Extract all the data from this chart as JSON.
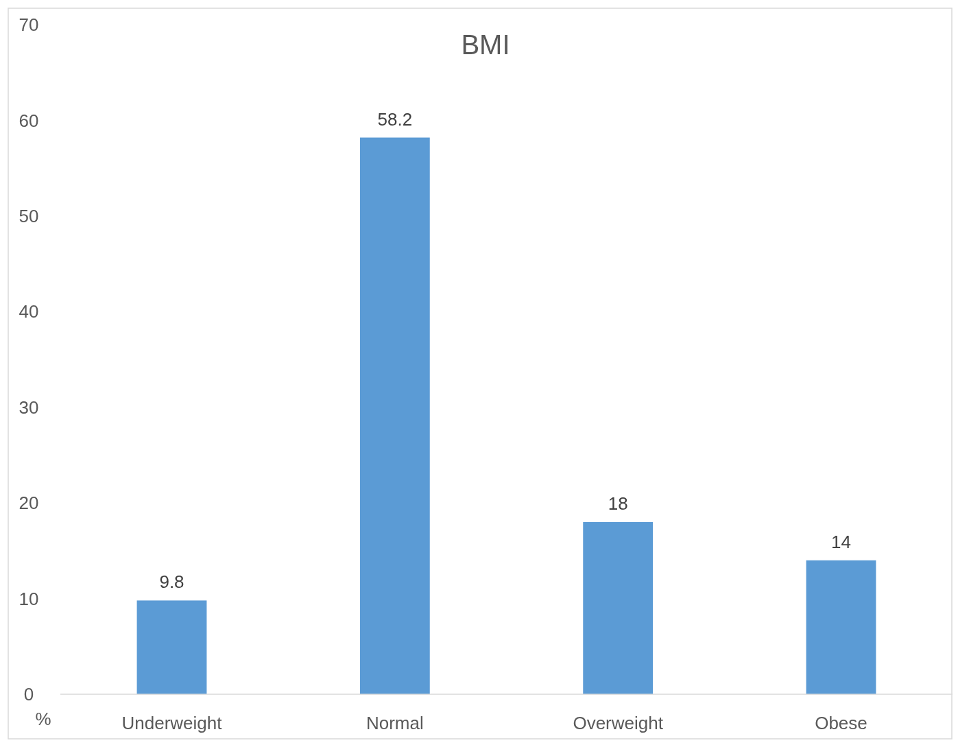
{
  "chart_data": {
    "type": "bar",
    "title": "BMI",
    "ylabel": "%",
    "categories": [
      "Underweight",
      "Normal",
      "Overweight",
      "Obese"
    ],
    "values": [
      9.8,
      58.2,
      18,
      14
    ],
    "color": "#5b9bd5",
    "ylim": [
      0,
      70
    ],
    "yticks": [
      0,
      10,
      20,
      30,
      40,
      50,
      60,
      70
    ],
    "data_labels": true
  }
}
